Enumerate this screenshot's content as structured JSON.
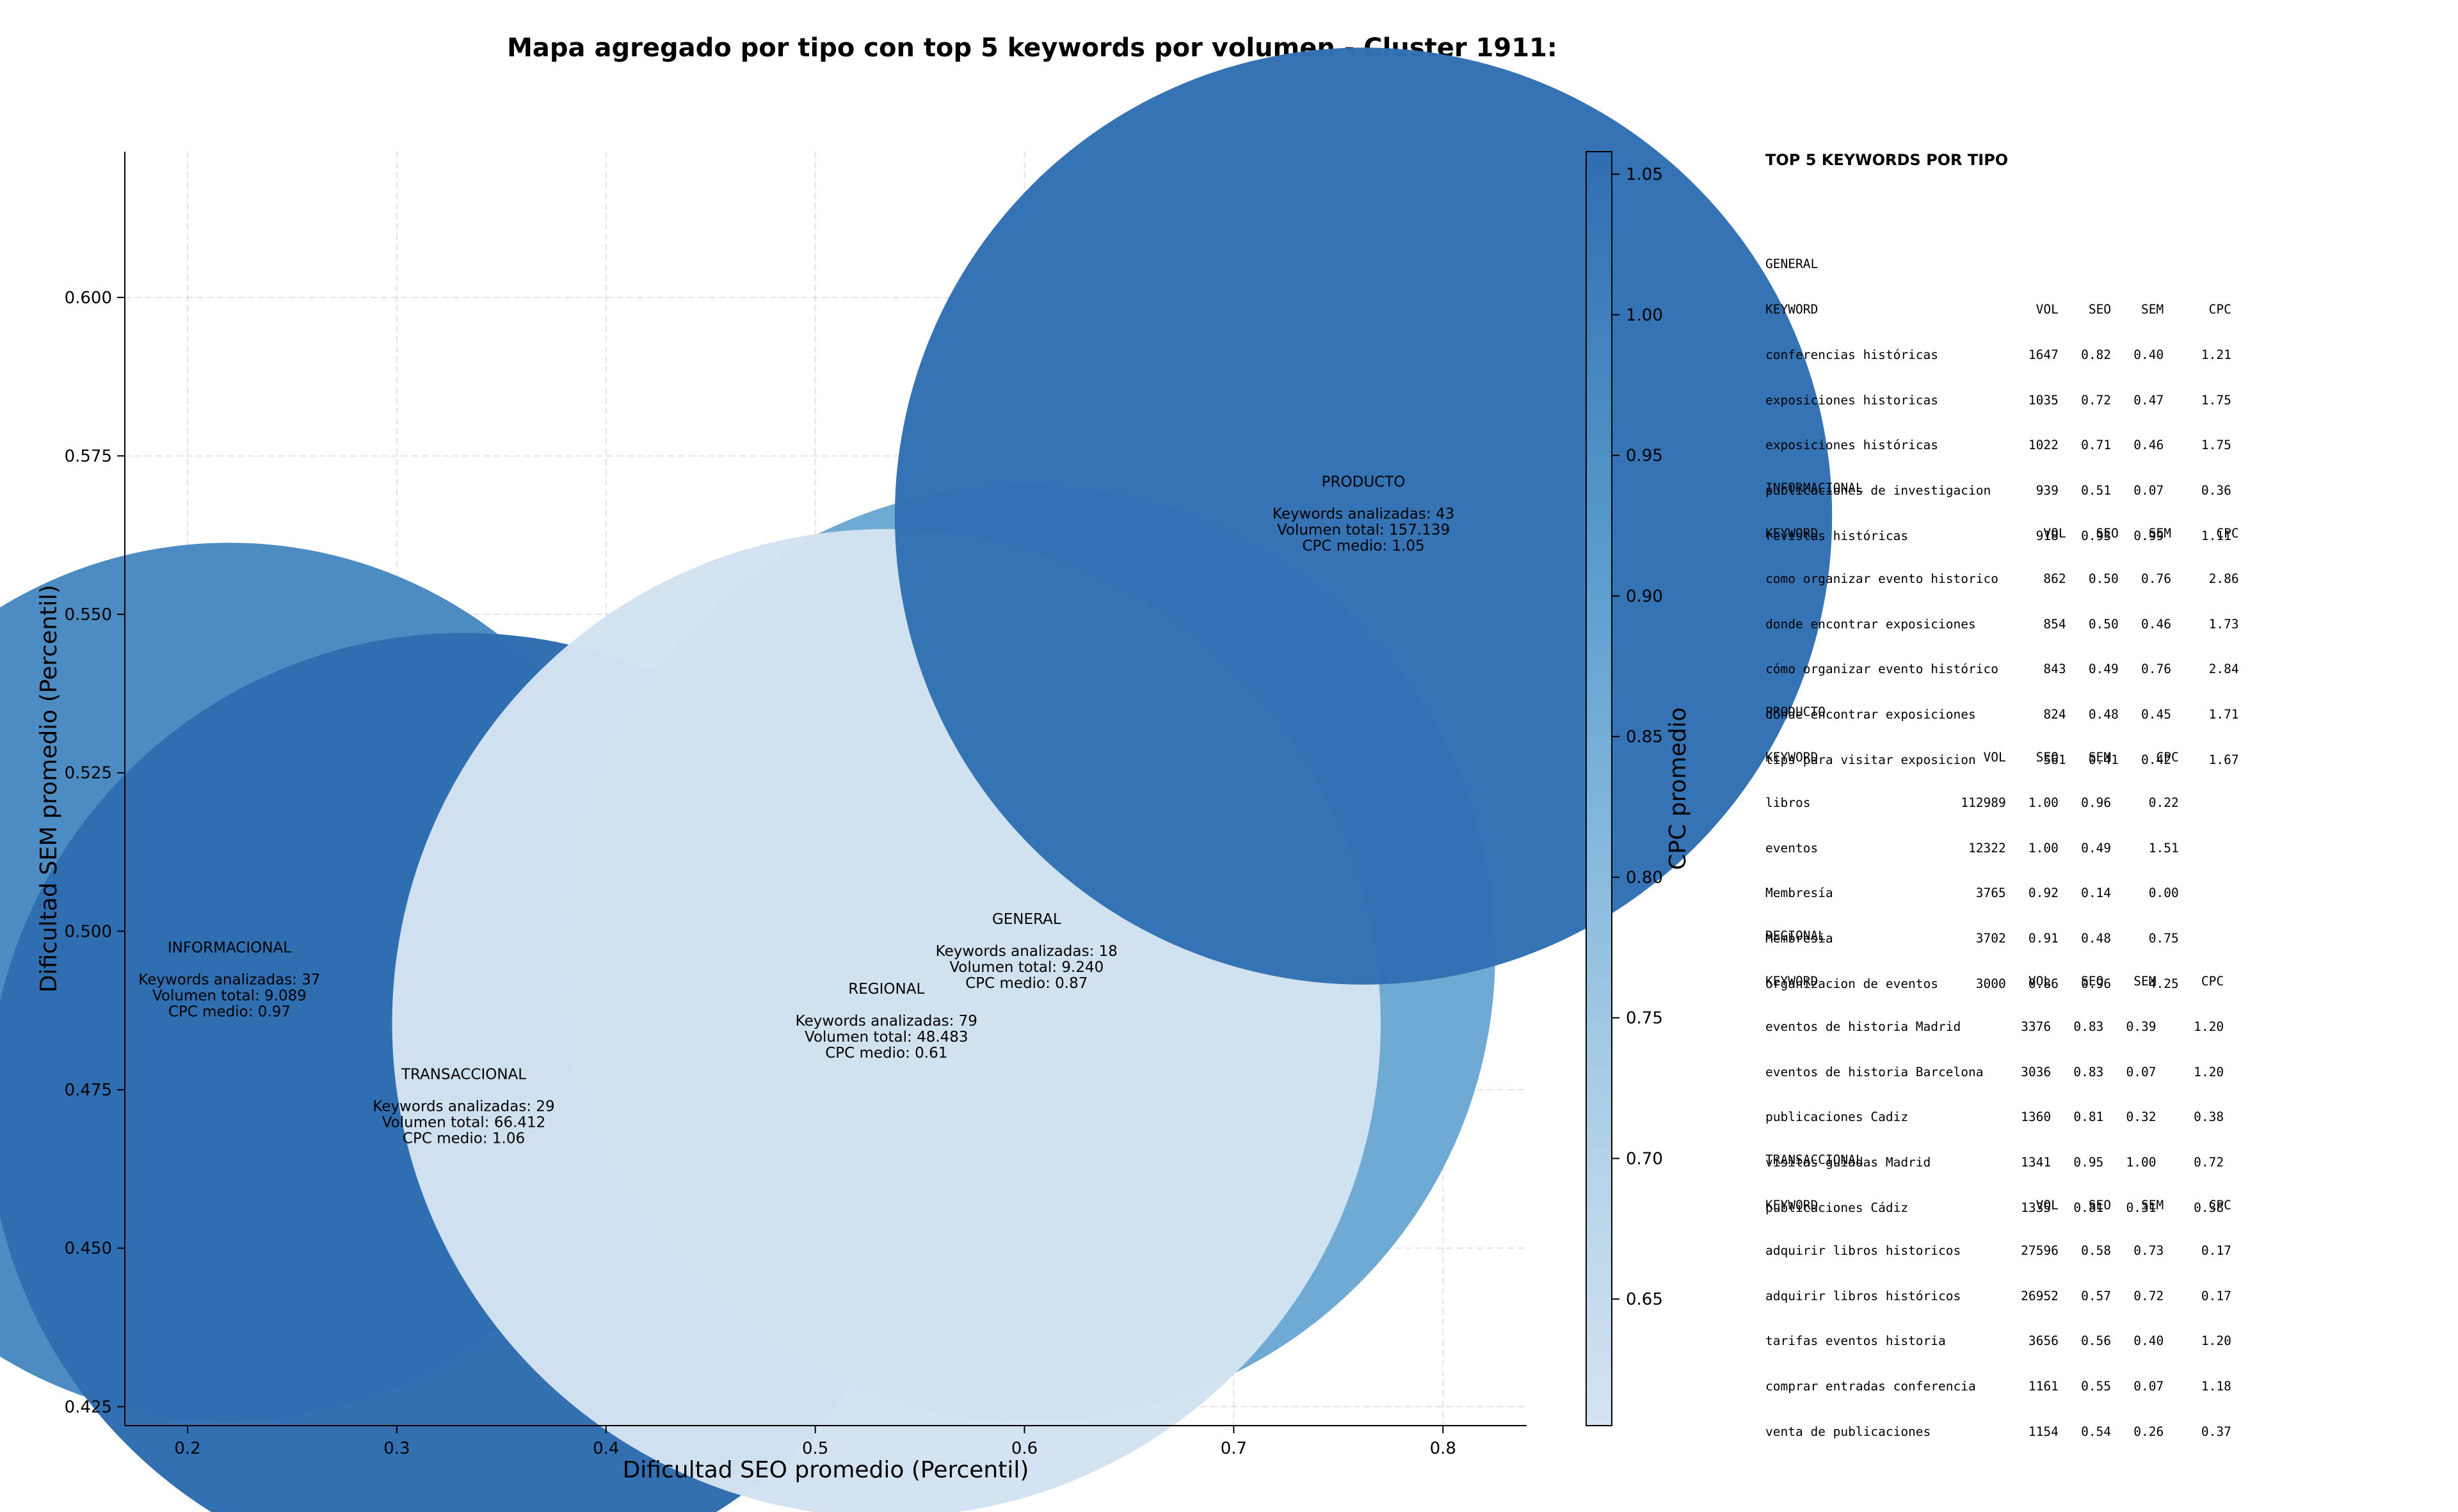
{
  "title": "Mapa agregado por tipo con top 5 keywords por volumen - Cluster 1911:",
  "chart_data": {
    "type": "scatter",
    "subtype": "bubble",
    "title": "Mapa agregado por tipo con top 5 keywords por volumen - Cluster 1911:",
    "xlabel": "Dificultad SEO promedio (Percentil)",
    "ylabel": "Dificultad SEM promedio (Percentil)",
    "xlim": [
      0.17,
      0.84
    ],
    "ylim": [
      0.422,
      0.623
    ],
    "xticks": [
      "0.2",
      "0.3",
      "0.4",
      "0.5",
      "0.6",
      "0.7",
      "0.8"
    ],
    "yticks": [
      "0.425",
      "0.450",
      "0.475",
      "0.500",
      "0.525",
      "0.550",
      "0.575",
      "0.600"
    ],
    "grid": true,
    "colorbar": {
      "label": "CPC promedio",
      "range": [
        0.605,
        1.058
      ],
      "ticks": [
        "0.65",
        "0.70",
        "0.75",
        "0.80",
        "0.85",
        "0.90",
        "0.95",
        "1.00",
        "1.05"
      ],
      "color_low": "#d4e3f1",
      "color_high": "#2f6db0"
    },
    "points": [
      {
        "label": "INFORMACIONAL",
        "x": 0.22,
        "y": 0.492,
        "cpc": 0.97,
        "radius": 0.6,
        "l1": "Keywords analizadas: 37",
        "l2": "Volumen total: 9.089",
        "l3": "CPC medio: 0.97"
      },
      {
        "label": "TRANSACCIONAL",
        "x": 0.332,
        "y": 0.472,
        "cpc": 1.06,
        "radius": 0.65,
        "l1": "Keywords analizadas: 29",
        "l2": "Volumen total: 66.412",
        "l3": "CPC medio: 1.06"
      },
      {
        "label": "GENERAL",
        "x": 0.601,
        "y": 0.4965,
        "cpc": 0.87,
        "radius": 0.64,
        "l1": "Keywords analizadas: 18",
        "l2": "Volumen total: 9.240",
        "l3": "CPC medio: 0.87"
      },
      {
        "label": "REGIONAL",
        "x": 0.534,
        "y": 0.4855,
        "cpc": 0.61,
        "radius": 0.675,
        "l1": "Keywords analizadas: 79",
        "l2": "Volumen total: 48.483",
        "l3": "CPC medio: 0.61"
      },
      {
        "label": "PRODUCTO",
        "x": 0.762,
        "y": 0.5655,
        "cpc": 1.05,
        "radius": 0.64,
        "l1": "Keywords analizadas: 43",
        "l2": "Volumen total: 157.139",
        "l3": "CPC medio: 1.05"
      }
    ]
  },
  "panel": {
    "title": "TOP 5 KEYWORDS POR TIPO",
    "sections": [
      {
        "name": "GENERAL",
        "lines": [
          "KEYWORD                             VOL    SEO    SEM      CPC",
          "conferencias históricas            1647   0.82   0.40     1.21",
          "exposiciones historicas            1035   0.72   0.47     1.75",
          "exposiciones históricas            1022   0.71   0.46     1.75",
          "publicaciones de investigacion      939   0.51   0.07     0.36",
          "revistas históricas                 918   0.93   0.99     1.11"
        ]
      },
      {
        "name": "INFORMACIONAL",
        "lines": [
          "KEYWORD                              VOL    SEO    SEM      CPC",
          "como organizar evento historico      862   0.50   0.76     2.86",
          "donde encontrar exposiciones         854   0.50   0.46     1.73",
          "cómo organizar evento histórico      843   0.49   0.76     2.84",
          "dónde encontrar exposiciones         824   0.48   0.45     1.71",
          "tips para visitar exposicion         561   0.41   0.42     1.67"
        ]
      },
      {
        "name": "PRODUCTO",
        "lines": [
          "KEYWORD                      VOL    SEO    SEM      CPC",
          "libros                    112989   1.00   0.96     0.22",
          "eventos                    12322   1.00   0.49     1.51",
          "Membresía                   3765   0.92   0.14     0.00",
          "Membresia                   3702   0.91   0.48     0.75",
          "organizacion de eventos     3000   0.86   0.96     4.25"
        ]
      },
      {
        "name": "REGIONAL",
        "lines": [
          "KEYWORD                            VOL    SEO    SEM      CPC",
          "eventos de historia Madrid        3376   0.83   0.39     1.20",
          "eventos de historia Barcelona     3036   0.83   0.07     1.20",
          "publicaciones Cadiz               1360   0.81   0.32     0.38",
          "visitas guiadas Madrid            1341   0.95   1.00     0.72",
          "publicaciones Cádiz               1335   0.81   0.31     0.38"
        ]
      },
      {
        "name": "TRANSACCIONAL",
        "lines": [
          "KEYWORD                             VOL    SEO    SEM      CPC",
          "adquirir libros historicos        27596   0.58   0.73     0.17",
          "adquirir libros históricos        26952   0.57   0.72     0.17",
          "tarifas eventos historia           3656   0.56   0.40     1.20",
          "comprar entradas conferencia       1161   0.55   0.07     1.18",
          "venta de publicaciones             1154   0.54   0.26     0.37"
        ]
      }
    ]
  }
}
